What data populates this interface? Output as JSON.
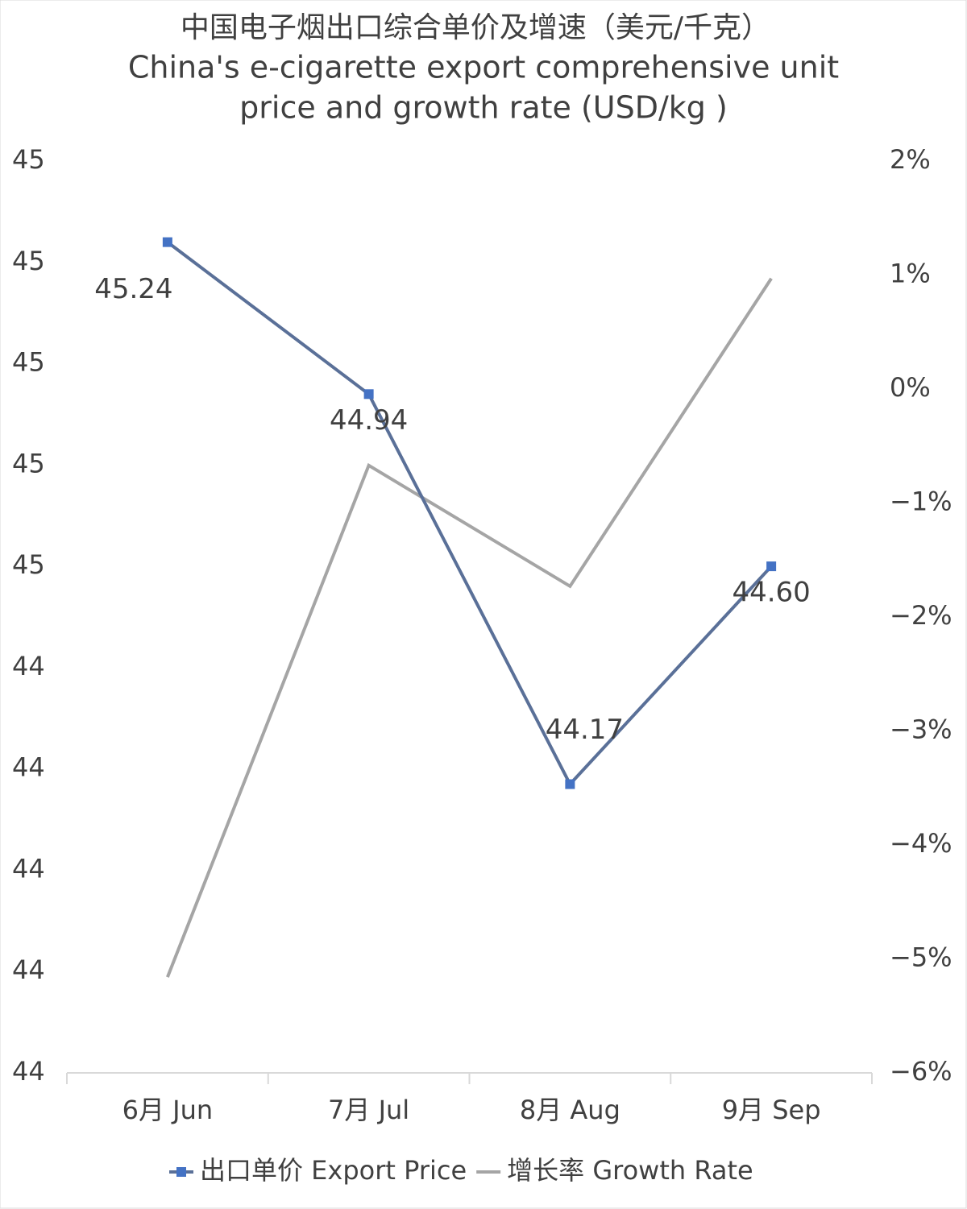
{
  "chart_data": {
    "type": "line",
    "title_lines": [
      "中国电子烟出口综合单价及增速（美元/千克）",
      "China's e-cigarette export comprehensive unit",
      "price and growth rate (USD/kg )"
    ],
    "categories": [
      "6月 Jun",
      "7月 Jul",
      "8月 Aug",
      "9月 Sep"
    ],
    "series": [
      {
        "name": "出口单价 Export Price",
        "color": "#5a7098",
        "marker_color": "#4472c4",
        "values": [
          45.24,
          44.94,
          44.17,
          44.6
        ],
        "value_labels": [
          "45.24",
          "44.94",
          "44.17",
          "44.60"
        ]
      },
      {
        "name": "增长率 Growth Rate",
        "color": "#a5a5a5",
        "axis": "y2",
        "values": [
          -5.16,
          -0.67,
          -1.73,
          0.97
        ]
      }
    ],
    "ylim": [
      43.6,
      45.4
    ],
    "yticks": [
      {
        "value": 43.6,
        "label": "44"
      },
      {
        "value": 43.8,
        "label": "44"
      },
      {
        "value": 44.0,
        "label": "44"
      },
      {
        "value": 44.2,
        "label": "44"
      },
      {
        "value": 44.4,
        "label": "44"
      },
      {
        "value": 44.6,
        "label": "45"
      },
      {
        "value": 44.8,
        "label": "45"
      },
      {
        "value": 45.0,
        "label": "45"
      },
      {
        "value": 45.2,
        "label": "45"
      },
      {
        "value": 45.4,
        "label": "45"
      }
    ],
    "y2lim": [
      -6,
      2
    ],
    "y2ticks": [
      {
        "value": -6,
        "label": "−6%"
      },
      {
        "value": -5,
        "label": "−5%"
      },
      {
        "value": -4,
        "label": "−4%"
      },
      {
        "value": -3,
        "label": "−3%"
      },
      {
        "value": -2,
        "label": "−2%"
      },
      {
        "value": -1,
        "label": "−1%"
      },
      {
        "value": 0,
        "label": "0%"
      },
      {
        "value": 1,
        "label": "1%"
      },
      {
        "value": 2,
        "label": "2%"
      }
    ],
    "legend": "bottom"
  }
}
